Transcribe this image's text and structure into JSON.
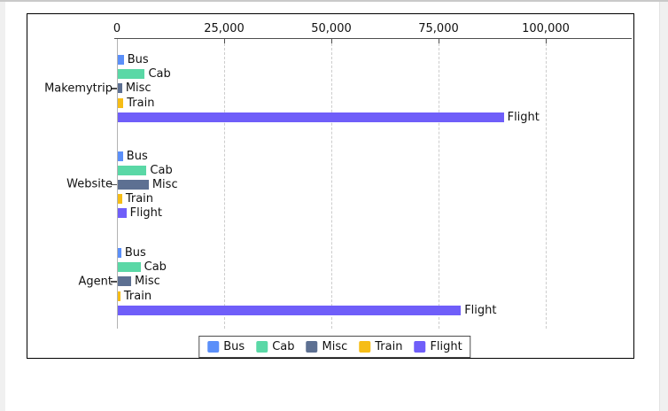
{
  "chart_data": {
    "type": "bar",
    "orientation": "horizontal",
    "title": "",
    "categories": [
      "Makemytrip",
      "Website",
      "Agent"
    ],
    "series": [
      {
        "name": "Bus",
        "color": "#5B8FF9",
        "values": [
          1400,
          1200,
          800
        ]
      },
      {
        "name": "Cab",
        "color": "#5AD8A6",
        "values": [
          6300,
          6700,
          5300
        ]
      },
      {
        "name": "Misc",
        "color": "#5D7092",
        "values": [
          1000,
          7200,
          3100
        ]
      },
      {
        "name": "Train",
        "color": "#F6BD16",
        "values": [
          1300,
          1000,
          600
        ]
      },
      {
        "name": "Flight",
        "color": "#6F5EF9",
        "values": [
          90000,
          2000,
          80000
        ]
      }
    ],
    "bar_end_labels": [
      "Bus",
      "Cab",
      "Misc",
      "Train",
      "Flight"
    ],
    "x_axis": {
      "position": "top",
      "min": 0,
      "max": 120000,
      "ticks": [
        0,
        25000,
        50000,
        75000,
        100000
      ],
      "tick_labels": [
        "0",
        "25,000",
        "50,000",
        "75,000",
        "100,000"
      ],
      "gridlines": "dashed-vertical"
    },
    "y_axis": {
      "labels": [
        "Makemytrip",
        "Website",
        "Agent"
      ]
    },
    "legend": {
      "position": "bottom-center",
      "entries": [
        "Bus",
        "Cab",
        "Misc",
        "Train",
        "Flight"
      ]
    },
    "colors": {
      "axis": "#4d4d4d",
      "grid": "#cccccc",
      "text": "#111111",
      "plot_border": "#000000"
    }
  }
}
